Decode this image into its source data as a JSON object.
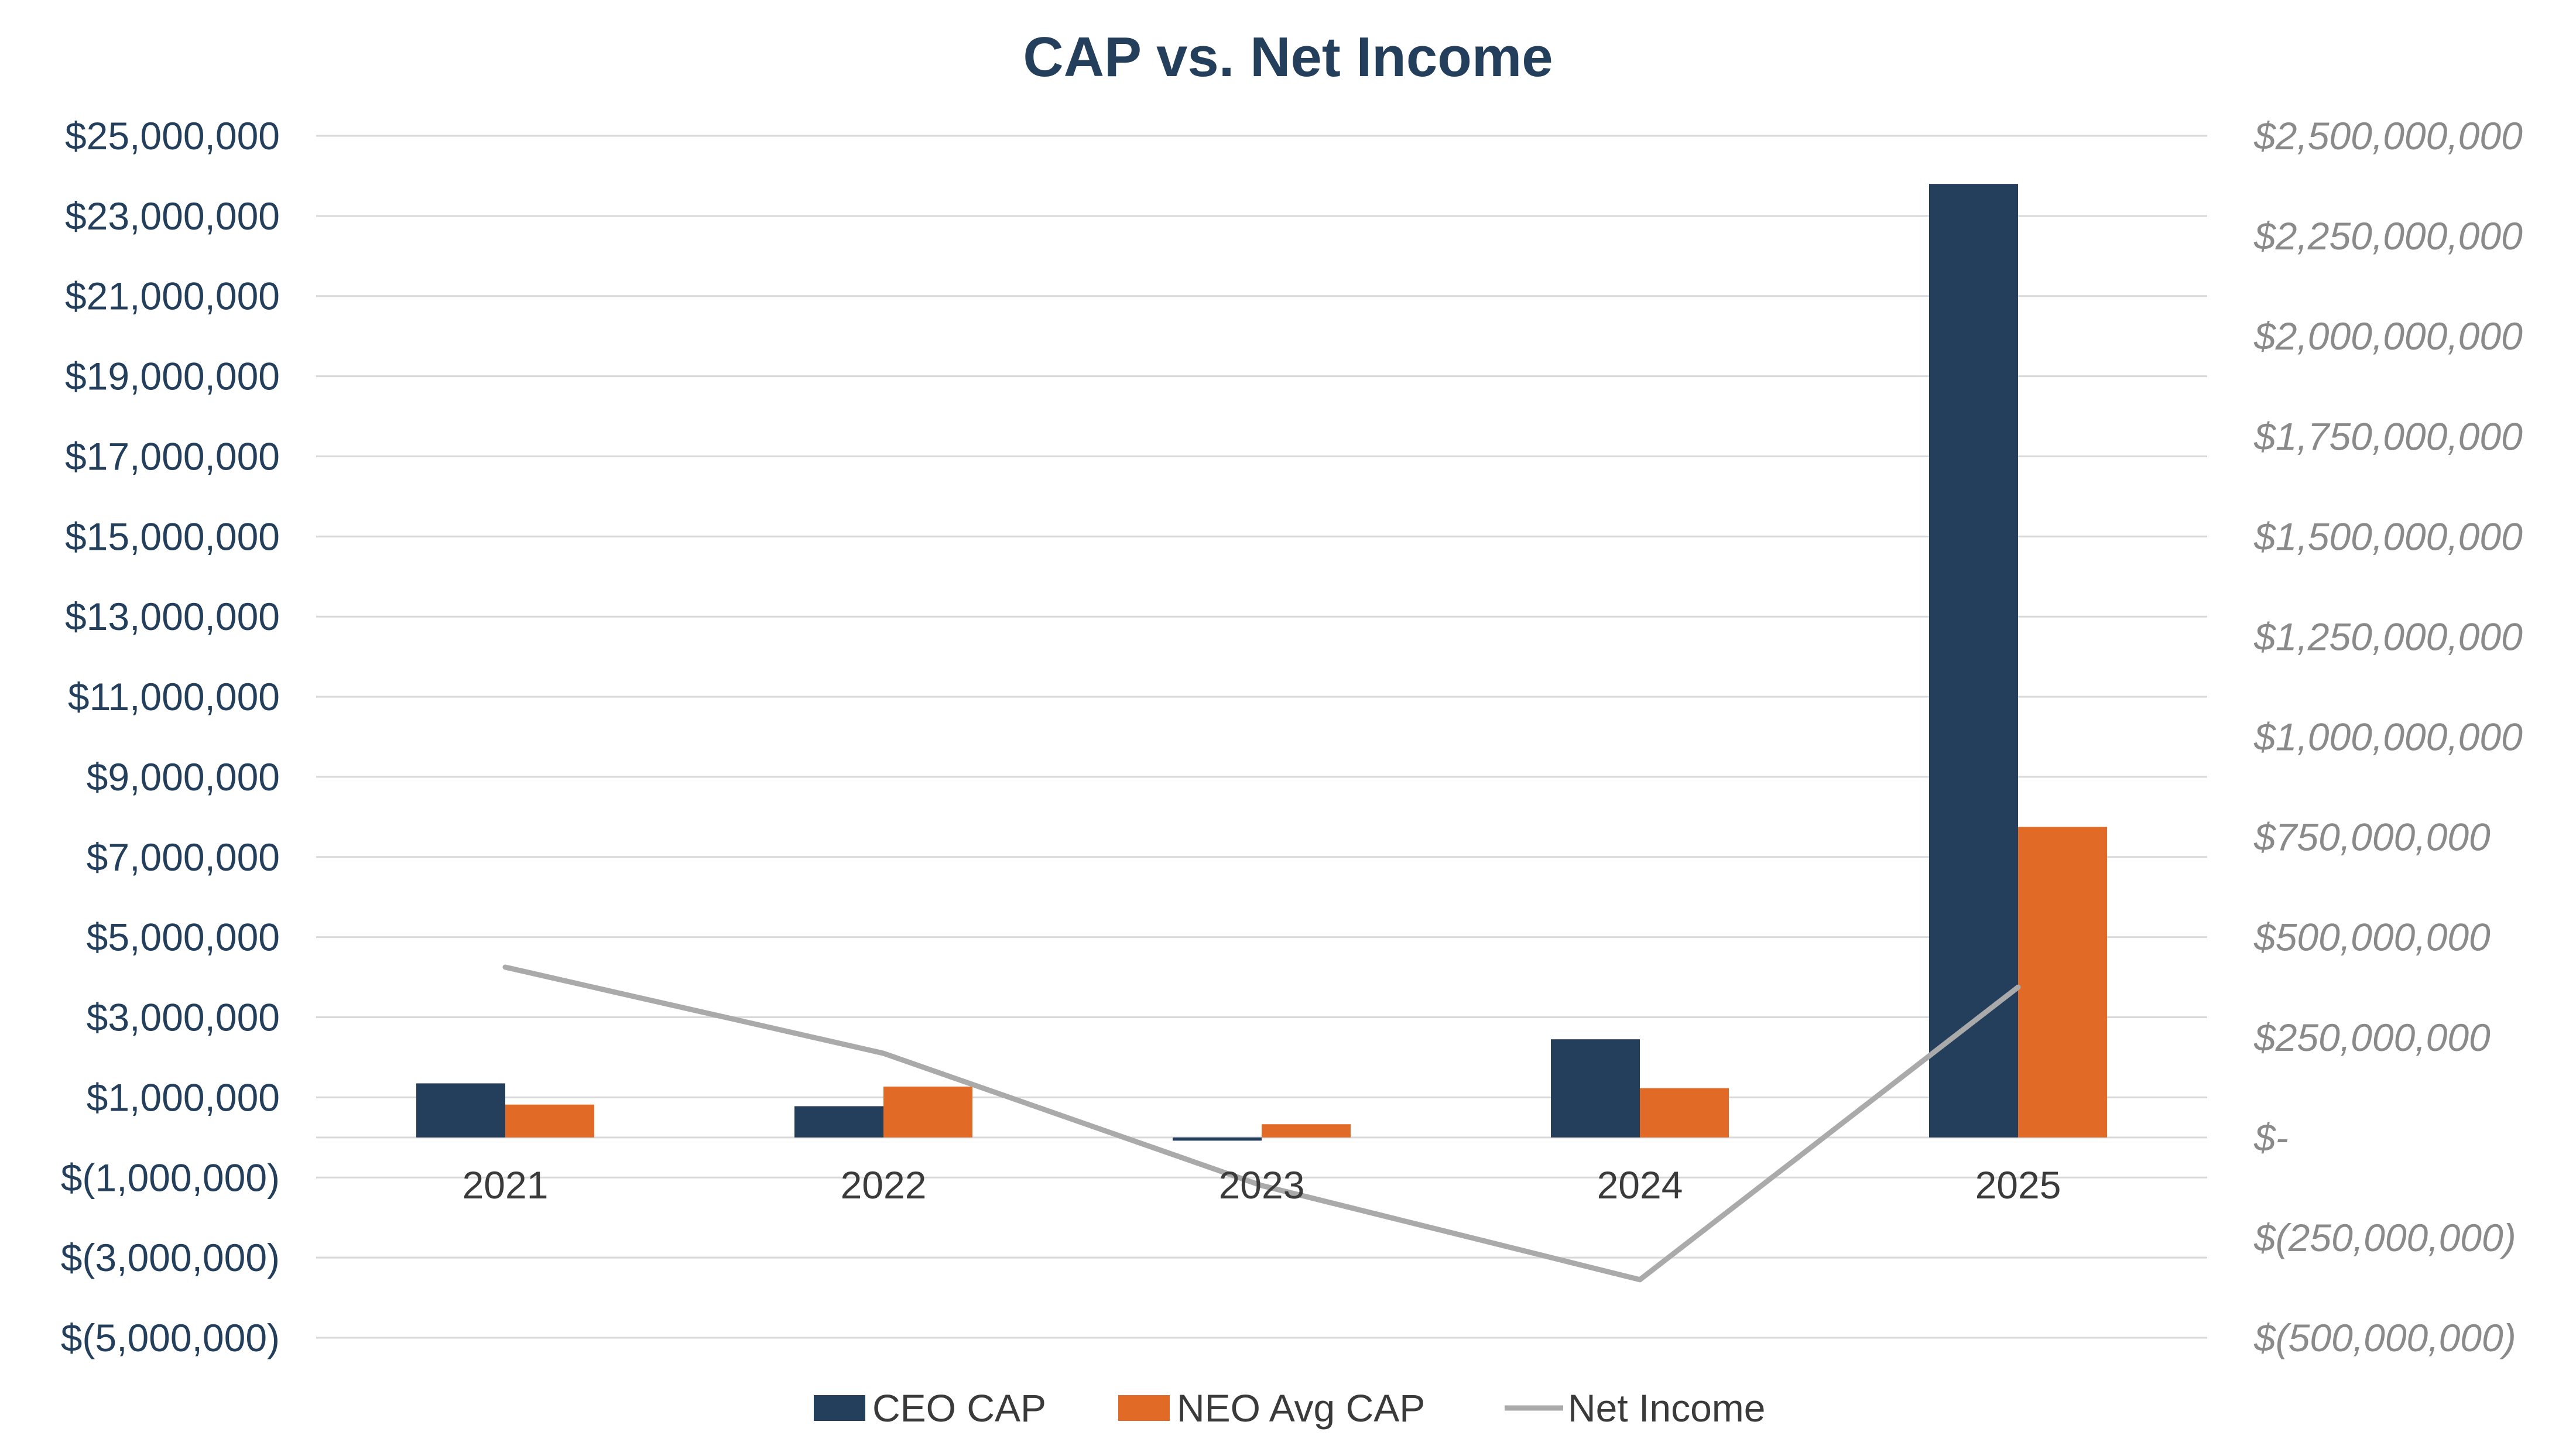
{
  "chart_data": {
    "type": "bar",
    "title": "CAP vs. Net Income",
    "categories": [
      "2021",
      "2022",
      "2023",
      "2024",
      "2025"
    ],
    "series": [
      {
        "name": "CEO CAP",
        "type": "bar",
        "axis": "left",
        "color": "#243f5c",
        "values": [
          1350000,
          780000,
          -80000,
          2450000,
          23800000
        ]
      },
      {
        "name": "NEO Avg CAP",
        "type": "bar",
        "axis": "left",
        "color": "#e06a26",
        "values": [
          820000,
          1270000,
          330000,
          1230000,
          7750000
        ]
      },
      {
        "name": "Net Income",
        "type": "line",
        "axis": "right",
        "color": "#aaaaaa",
        "values": [
          425000000,
          210000000,
          -120000000,
          -355000000,
          375000000
        ]
      }
    ],
    "y_left": {
      "range": [
        -5000000,
        25000000
      ],
      "ticks": [
        25000000,
        23000000,
        21000000,
        19000000,
        17000000,
        15000000,
        13000000,
        11000000,
        9000000,
        7000000,
        5000000,
        3000000,
        1000000,
        -1000000,
        -3000000,
        -5000000
      ],
      "tick_labels": [
        "$25,000,000",
        "$23,000,000",
        "$21,000,000",
        "$19,000,000",
        "$17,000,000",
        "$15,000,000",
        "$13,000,000",
        "$11,000,000",
        "$9,000,000",
        "$7,000,000",
        "$5,000,000",
        "$3,000,000",
        "$1,000,000",
        "$(1,000,000)",
        "$(3,000,000)",
        "$(5,000,000)"
      ]
    },
    "y_right": {
      "range": [
        -500000000,
        2500000000
      ],
      "ticks": [
        2500000000,
        2250000000,
        2000000000,
        1750000000,
        1500000000,
        1250000000,
        1000000000,
        750000000,
        500000000,
        250000000,
        0,
        -250000000,
        -500000000
      ],
      "tick_labels": [
        "$2,500,000,000",
        "$2,250,000,000",
        "$2,000,000,000",
        "$1,750,000,000",
        "$1,500,000,000",
        "$1,250,000,000",
        "$1,000,000,000",
        "$750,000,000",
        "$500,000,000",
        "$250,000,000",
        "$-",
        "$(250,000,000)",
        "$(500,000,000)"
      ]
    },
    "grid": true,
    "legend": "bottom-center"
  }
}
